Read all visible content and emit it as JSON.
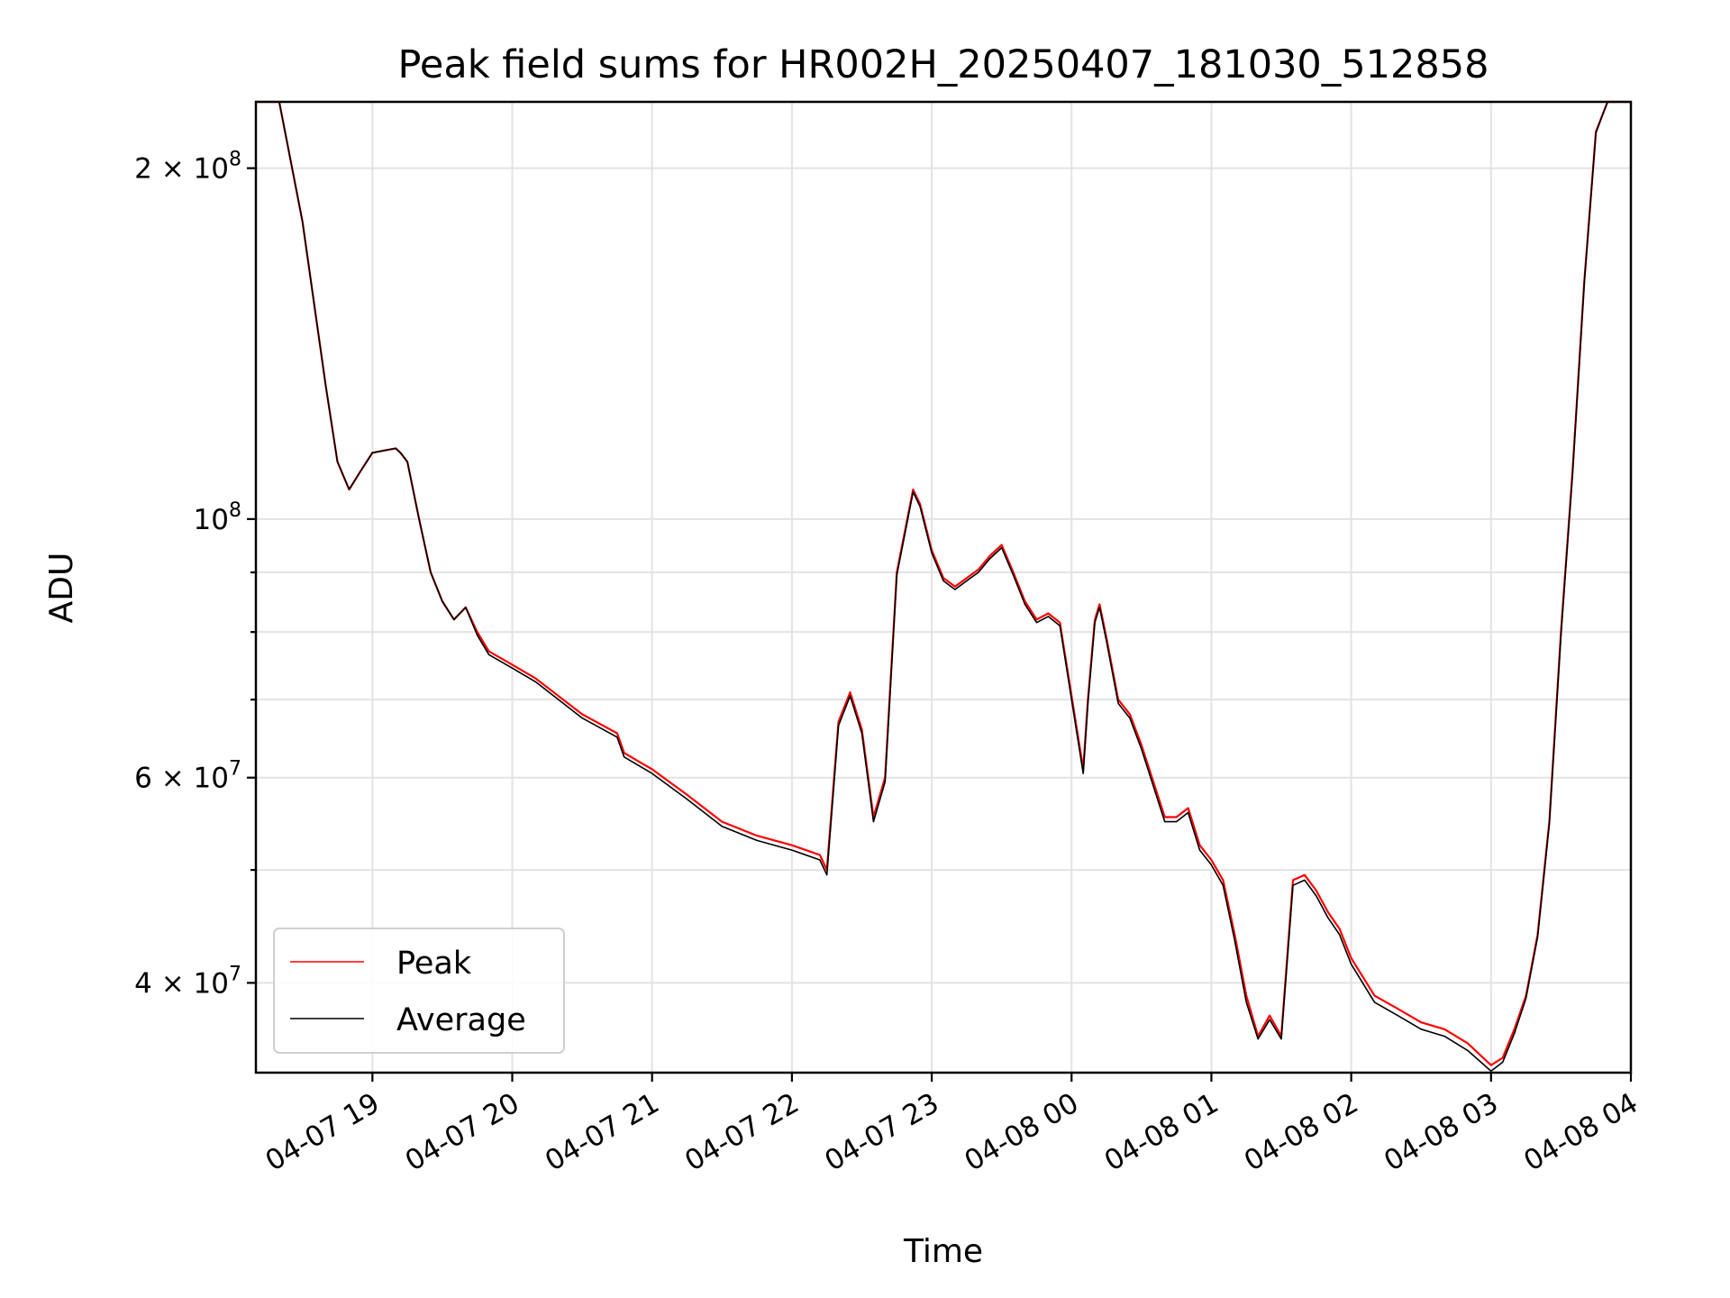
{
  "chart_data": {
    "type": "line",
    "title": "Peak field sums for HR002H_20250407_181030_512858",
    "xlabel": "Time",
    "ylabel": "ADU",
    "y_scale": "log",
    "grid": true,
    "legend_position": "lower-left",
    "x_range": [
      "2025-04-07 18:10",
      "2025-04-08 04:00"
    ],
    "ylim": [
      33500000,
      228000000
    ],
    "x_ticks": [
      {
        "label": "04-07 19",
        "time": "2025-04-07 19:00"
      },
      {
        "label": "04-07 20",
        "time": "2025-04-07 20:00"
      },
      {
        "label": "04-07 21",
        "time": "2025-04-07 21:00"
      },
      {
        "label": "04-07 22",
        "time": "2025-04-07 22:00"
      },
      {
        "label": "04-07 23",
        "time": "2025-04-07 23:00"
      },
      {
        "label": "04-08 00",
        "time": "2025-04-08 00:00"
      },
      {
        "label": "04-08 01",
        "time": "2025-04-08 01:00"
      },
      {
        "label": "04-08 02",
        "time": "2025-04-08 02:00"
      },
      {
        "label": "04-08 03",
        "time": "2025-04-08 03:00"
      },
      {
        "label": "04-08 04",
        "time": "2025-04-08 04:00"
      }
    ],
    "y_major_ticks": [
      {
        "mantissa": "2 × 10",
        "exponent": "8",
        "value": 200000000
      },
      {
        "mantissa": "10",
        "exponent": "8",
        "value": 100000000
      },
      {
        "mantissa": "6 × 10",
        "exponent": "7",
        "value": 60000000
      },
      {
        "mantissa": "4 × 10",
        "exponent": "7",
        "value": 40000000
      }
    ],
    "y_minor_ticks": [
      90000000,
      80000000,
      70000000,
      50000000
    ],
    "x": [
      "2025-04-07 18:10",
      "2025-04-07 18:20",
      "2025-04-07 18:30",
      "2025-04-07 18:40",
      "2025-04-07 18:45",
      "2025-04-07 18:50",
      "2025-04-07 18:55",
      "2025-04-07 19:00",
      "2025-04-07 19:05",
      "2025-04-07 19:10",
      "2025-04-07 19:12",
      "2025-04-07 19:15",
      "2025-04-07 19:20",
      "2025-04-07 19:25",
      "2025-04-07 19:30",
      "2025-04-07 19:35",
      "2025-04-07 19:40",
      "2025-04-07 19:45",
      "2025-04-07 19:50",
      "2025-04-07 20:00",
      "2025-04-07 20:10",
      "2025-04-07 20:30",
      "2025-04-07 20:45",
      "2025-04-07 20:48",
      "2025-04-07 21:00",
      "2025-04-07 21:15",
      "2025-04-07 21:30",
      "2025-04-07 21:45",
      "2025-04-07 22:00",
      "2025-04-07 22:12",
      "2025-04-07 22:15",
      "2025-04-07 22:20",
      "2025-04-07 22:25",
      "2025-04-07 22:30",
      "2025-04-07 22:35",
      "2025-04-07 22:40",
      "2025-04-07 22:45",
      "2025-04-07 22:52",
      "2025-04-07 22:55",
      "2025-04-07 23:00",
      "2025-04-07 23:05",
      "2025-04-07 23:10",
      "2025-04-07 23:15",
      "2025-04-07 23:20",
      "2025-04-07 23:25",
      "2025-04-07 23:30",
      "2025-04-07 23:35",
      "2025-04-07 23:40",
      "2025-04-07 23:45",
      "2025-04-07 23:50",
      "2025-04-07 23:55",
      "2025-04-08 00:05",
      "2025-04-08 00:07",
      "2025-04-08 00:10",
      "2025-04-08 00:12",
      "2025-04-08 00:15",
      "2025-04-08 00:20",
      "2025-04-08 00:25",
      "2025-04-08 00:30",
      "2025-04-08 00:40",
      "2025-04-08 00:45",
      "2025-04-08 00:50",
      "2025-04-08 00:55",
      "2025-04-08 01:00",
      "2025-04-08 01:05",
      "2025-04-08 01:10",
      "2025-04-08 01:15",
      "2025-04-08 01:20",
      "2025-04-08 01:25",
      "2025-04-08 01:30",
      "2025-04-08 01:35",
      "2025-04-08 01:40",
      "2025-04-08 01:45",
      "2025-04-08 01:50",
      "2025-04-08 01:55",
      "2025-04-08 02:00",
      "2025-04-08 02:10",
      "2025-04-08 02:20",
      "2025-04-08 02:30",
      "2025-04-08 02:40",
      "2025-04-08 02:50",
      "2025-04-08 03:00",
      "2025-04-08 03:05",
      "2025-04-08 03:10",
      "2025-04-08 03:15",
      "2025-04-08 03:20",
      "2025-04-08 03:25",
      "2025-04-08 03:30",
      "2025-04-08 03:35",
      "2025-04-08 03:40",
      "2025-04-08 03:45",
      "2025-04-08 03:50",
      "2025-04-08 04:00"
    ],
    "series": [
      {
        "name": "Peak",
        "color": "#ff0000",
        "values": [
          228000000,
          228000000,
          180000000,
          130000000,
          112000000,
          106000000,
          110000000,
          114000000,
          114500000,
          115000000,
          114000000,
          112000000,
          100000000,
          90000000,
          85000000,
          82000000,
          84000000,
          80000000,
          77000000,
          75000000,
          73000000,
          68000000,
          65500000,
          63000000,
          61000000,
          58000000,
          55000000,
          53500000,
          52500000,
          51500000,
          50000000,
          67000000,
          71000000,
          66000000,
          55500000,
          60000000,
          90000000,
          106000000,
          103000000,
          94000000,
          89000000,
          87500000,
          89000000,
          90500000,
          93000000,
          95000000,
          90000000,
          85000000,
          82000000,
          83000000,
          81500000,
          61000000,
          70000000,
          82000000,
          84500000,
          79000000,
          70000000,
          68000000,
          64000000,
          55500000,
          55500000,
          56500000,
          52500000,
          51000000,
          49000000,
          44000000,
          39000000,
          36000000,
          37500000,
          36000000,
          49000000,
          49500000,
          48000000,
          46000000,
          44500000,
          42000000,
          39000000,
          38000000,
          37000000,
          36500000,
          35500000,
          34000000,
          34500000,
          36500000,
          39000000,
          44000000,
          55000000,
          80000000,
          110000000,
          160000000,
          215000000,
          228000000,
          228000000
        ]
      },
      {
        "name": "Average",
        "color": "#000000",
        "values": [
          228000000,
          228000000,
          180000000,
          130000000,
          112000000,
          106000000,
          110000000,
          114000000,
          114500000,
          115000000,
          114000000,
          112000000,
          100000000,
          90000000,
          85000000,
          82000000,
          84000000,
          79500000,
          76500000,
          74500000,
          72500000,
          67500000,
          65000000,
          62500000,
          60500000,
          57500000,
          54500000,
          53000000,
          52000000,
          51000000,
          49500000,
          66500000,
          70500000,
          65500000,
          55000000,
          59500000,
          89500000,
          105500000,
          102500000,
          93500000,
          88500000,
          87000000,
          88500000,
          90000000,
          92500000,
          94500000,
          89500000,
          84500000,
          81500000,
          82500000,
          81000000,
          60500000,
          69500000,
          81500000,
          84000000,
          78500000,
          69500000,
          67500000,
          63500000,
          55000000,
          55000000,
          56000000,
          52000000,
          50500000,
          48500000,
          43500000,
          38500000,
          35800000,
          37200000,
          35800000,
          48500000,
          49000000,
          47500000,
          45500000,
          44000000,
          41500000,
          38500000,
          37500000,
          36500000,
          36000000,
          35000000,
          33600000,
          34200000,
          36200000,
          38800000,
          43800000,
          54800000,
          79500000,
          109500000,
          159500000,
          214500000,
          228000000,
          228000000
        ]
      }
    ]
  }
}
